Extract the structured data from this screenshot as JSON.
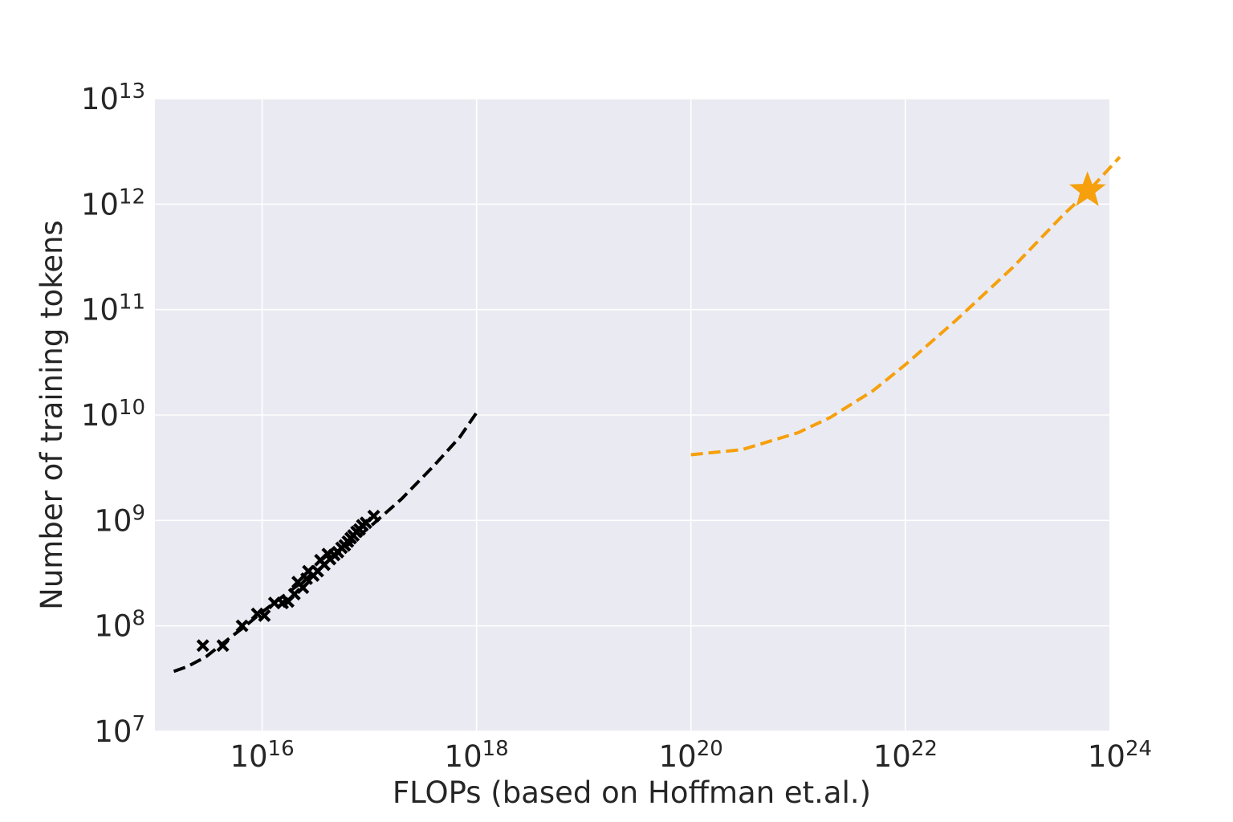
{
  "chart_data": {
    "type": "scatter",
    "xlabel": "FLOPs (based on Hoffman et.al.)",
    "ylabel": "Number of training tokens",
    "xscale": "log",
    "yscale": "log",
    "xlim": [
      1000000000000000.0,
      8e+23
    ],
    "ylim": [
      10000000.0,
      10000000000000.0
    ],
    "grid": true,
    "xticks": [
      {
        "value": 1e+16,
        "base": "10",
        "exp": "16"
      },
      {
        "value": 1e+18,
        "base": "10",
        "exp": "18"
      },
      {
        "value": 1e+20,
        "base": "10",
        "exp": "20"
      },
      {
        "value": 1e+22,
        "base": "10",
        "exp": "22"
      },
      {
        "value": 1e+24,
        "base": "10",
        "exp": "24"
      }
    ],
    "yticks": [
      {
        "value": 10000000.0,
        "base": "10",
        "exp": "7"
      },
      {
        "value": 100000000.0,
        "base": "10",
        "exp": "8"
      },
      {
        "value": 1000000000.0,
        "base": "10",
        "exp": "9"
      },
      {
        "value": 10000000000.0,
        "base": "10",
        "exp": "10"
      },
      {
        "value": 100000000000.0,
        "base": "10",
        "exp": "11"
      },
      {
        "value": 1000000000000.0,
        "base": "10",
        "exp": "12"
      },
      {
        "value": 10000000000000.0,
        "base": "10",
        "exp": "13"
      }
    ],
    "series": [
      {
        "kind": "scatter",
        "marker": "x",
        "color": "#000000",
        "points": [
          [
            2800000000000000.0,
            65000000.0
          ],
          [
            4300000000000000.0,
            65000000.0
          ],
          [
            6500000000000000.0,
            100000000.0
          ],
          [
            9000000000000000.0,
            130000000.0
          ],
          [
            1.05e+16,
            125000000.0
          ],
          [
            1.3e+16,
            165000000.0
          ],
          [
            1.55e+16,
            165000000.0
          ],
          [
            1.75e+16,
            170000000.0
          ],
          [
            2e+16,
            200000000.0
          ],
          [
            2.15e+16,
            260000000.0
          ],
          [
            2.4e+16,
            230000000.0
          ],
          [
            2.6e+16,
            280000000.0
          ],
          [
            2.7e+16,
            330000000.0
          ],
          [
            3e+16,
            300000000.0
          ],
          [
            3.3e+16,
            330000000.0
          ],
          [
            3.5e+16,
            420000000.0
          ],
          [
            3.8e+16,
            380000000.0
          ],
          [
            4.1e+16,
            480000000.0
          ],
          [
            4.3e+16,
            430000000.0
          ],
          [
            4.7e+16,
            470000000.0
          ],
          [
            5.1e+16,
            500000000.0
          ],
          [
            5.5e+16,
            550000000.0
          ],
          [
            5.9e+16,
            580000000.0
          ],
          [
            6.3e+16,
            630000000.0
          ],
          [
            6.7e+16,
            680000000.0
          ],
          [
            7.1e+16,
            720000000.0
          ],
          [
            7.6e+16,
            780000000.0
          ],
          [
            8.1e+16,
            820000000.0
          ],
          [
            8.6e+16,
            900000000.0
          ],
          [
            9.3e+16,
            950000000.0
          ],
          [
            1.1e+17,
            1100000000.0
          ]
        ]
      },
      {
        "kind": "line",
        "style": "dashed",
        "color": "#000000",
        "points": [
          [
            1500000000000000.0,
            37000000.0
          ],
          [
            2000000000000000.0,
            41000000.0
          ],
          [
            3000000000000000.0,
            51000000.0
          ],
          [
            5000000000000000.0,
            77000000.0
          ],
          [
            7000000000000000.0,
            100000000.0
          ],
          [
            1e+16,
            135000000.0
          ],
          [
            1.5e+16,
            185000000.0
          ],
          [
            2e+16,
            230000000.0
          ],
          [
            3e+16,
            310000000.0
          ],
          [
            5e+16,
            480000000.0
          ],
          [
            7e+16,
            640000000.0
          ],
          [
            1e+17,
            860000000.0
          ],
          [
            2e+17,
            1600000000.0
          ],
          [
            4e+17,
            3300000000.0
          ],
          [
            7e+17,
            6200000000.0
          ],
          [
            1e+18,
            10500000000.0
          ]
        ]
      },
      {
        "kind": "line",
        "style": "dashed",
        "color": "#f5a00c",
        "points": [
          [
            1e+20,
            4200000000.0
          ],
          [
            3e+20,
            4700000000.0
          ],
          [
            1e+21,
            6800000000.0
          ],
          [
            2e+21,
            9500000000.0
          ],
          [
            5e+21,
            17000000000.0
          ],
          [
            1e+22,
            30000000000.0
          ],
          [
            3e+22,
            80000000000.0
          ],
          [
            1e+23,
            250000000000.0
          ],
          [
            3e+23,
            800000000000.0
          ],
          [
            5e+23,
            1300000000000.0
          ],
          [
            1e+24,
            2800000000000.0
          ]
        ]
      },
      {
        "kind": "scatter",
        "marker": "star",
        "color": "#f5a00c",
        "points": [
          [
            5e+23,
            1350000000000.0
          ]
        ]
      }
    ]
  }
}
